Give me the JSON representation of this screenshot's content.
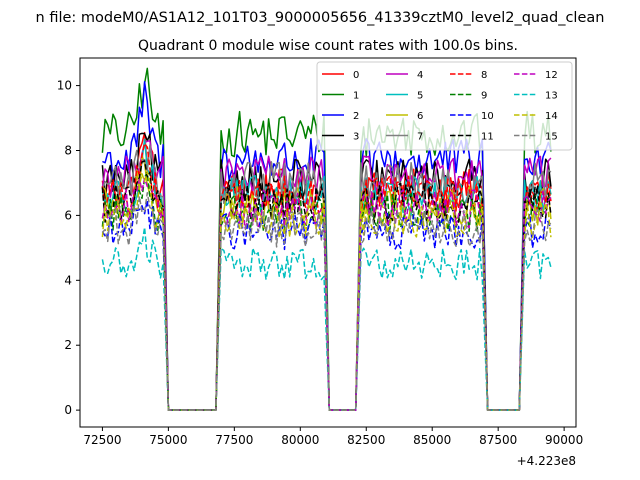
{
  "chart_data": {
    "type": "line",
    "suptitle": "n file: modeM0/AS1A12_101T03_9000005656_41339cztM0_level2_quad_clean",
    "title": "Quadrant 0 module wise count rates with 100.0s bins.",
    "xlabel": "",
    "ylabel": "",
    "x_offset_label": "+4.223e8",
    "xlim": [
      71650,
      90450
    ],
    "ylim": [
      -0.52,
      10.85
    ],
    "xticks": [
      72500,
      75000,
      77500,
      80000,
      82500,
      85000,
      87500,
      90000
    ],
    "xtick_labels": [
      "72500",
      "75000",
      "77500",
      "80000",
      "82500",
      "85000",
      "87500",
      "90000"
    ],
    "yticks": [
      0,
      2,
      4,
      6,
      8,
      10
    ],
    "ytick_labels": [
      "0",
      "2",
      "4",
      "6",
      "8",
      "10"
    ],
    "grid": false,
    "legend_position": "top-right",
    "legend_columns": 4,
    "bin_seconds": 100,
    "segments": [
      {
        "on": [
          72500,
          74800
        ],
        "drop": [
          74800,
          75000
        ],
        "gap": [
          75000,
          76800
        ],
        "rise": [
          76800,
          77000
        ]
      },
      {
        "on": [
          77000,
          80900
        ],
        "drop": [
          80900,
          81100
        ],
        "gap": [
          81100,
          82100
        ],
        "rise": [
          82100,
          82300
        ]
      },
      {
        "on": [
          82300,
          86900
        ],
        "drop": [
          86900,
          87100
        ],
        "gap": [
          87100,
          88300
        ],
        "rise": [
          88300,
          88500
        ]
      },
      {
        "on": [
          88500,
          89500
        ]
      }
    ],
    "peak_x": 74100,
    "series": [
      {
        "name": "0",
        "color": "#ff0000",
        "dash": "solid",
        "level": 6.8,
        "peak": 8.3
      },
      {
        "name": "1",
        "color": "#008000",
        "dash": "solid",
        "level": 8.5,
        "peak": 10.3
      },
      {
        "name": "2",
        "color": "#0000ff",
        "dash": "solid",
        "level": 7.7,
        "peak": 9.5
      },
      {
        "name": "3",
        "color": "#000000",
        "dash": "solid",
        "level": 7.1,
        "peak": 8.4
      },
      {
        "name": "4",
        "color": "#bf00bf",
        "dash": "solid",
        "level": 7.2,
        "peak": 8.6
      },
      {
        "name": "5",
        "color": "#00bfbf",
        "dash": "solid",
        "level": 6.6,
        "peak": 7.9
      },
      {
        "name": "6",
        "color": "#bfbf00",
        "dash": "solid",
        "level": 6.3,
        "peak": 7.6
      },
      {
        "name": "7",
        "color": "#808080",
        "dash": "solid",
        "level": 7.0,
        "peak": 8.2
      },
      {
        "name": "8",
        "color": "#ff0000",
        "dash": "dashed",
        "level": 6.6,
        "peak": 7.9
      },
      {
        "name": "9",
        "color": "#008000",
        "dash": "dashed",
        "level": 6.1,
        "peak": 7.3
      },
      {
        "name": "10",
        "color": "#0000ff",
        "dash": "dashed",
        "level": 5.5,
        "peak": 6.6
      },
      {
        "name": "11",
        "color": "#000000",
        "dash": "dashed",
        "level": 6.4,
        "peak": 7.5
      },
      {
        "name": "12",
        "color": "#bf00bf",
        "dash": "dashed",
        "level": 6.2,
        "peak": 7.4
      },
      {
        "name": "13",
        "color": "#00bfbf",
        "dash": "dashed",
        "level": 4.5,
        "peak": 5.2
      },
      {
        "name": "14",
        "color": "#bfbf00",
        "dash": "dashed",
        "level": 5.9,
        "peak": 7.0
      },
      {
        "name": "15",
        "color": "#808080",
        "dash": "dashed",
        "level": 5.6,
        "peak": 6.5
      }
    ]
  }
}
